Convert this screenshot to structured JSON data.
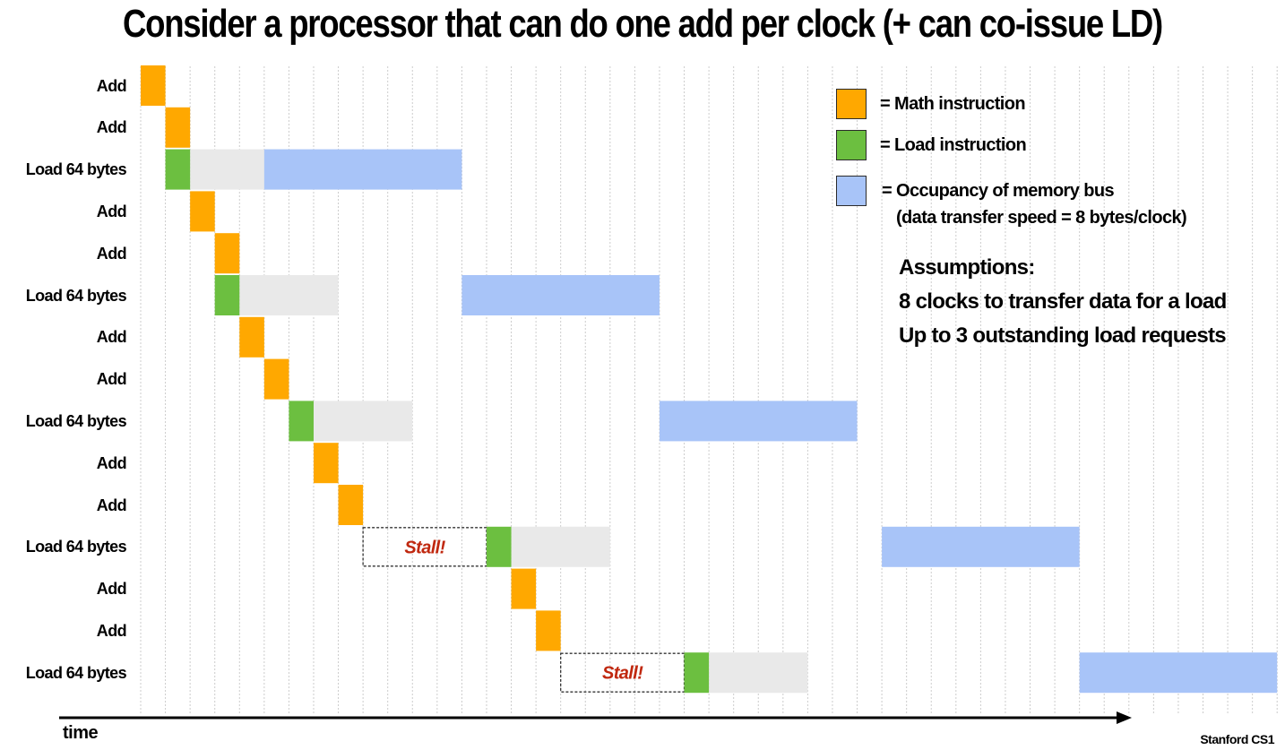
{
  "title": "Consider a processor that can do one add per clock (+ can co-issue LD)",
  "colors": {
    "math": "#ffa800",
    "load": "#6cbf40",
    "latency": "#e9e9e9",
    "bus": "#a8c4f8",
    "stall_text": "#c0280f",
    "grid": "#cccccc"
  },
  "rows": [
    {
      "label": "Add",
      "type": "math"
    },
    {
      "label": "Add",
      "type": "math"
    },
    {
      "label": "Load 64 bytes",
      "type": "load"
    },
    {
      "label": "Add",
      "type": "math"
    },
    {
      "label": "Add",
      "type": "math"
    },
    {
      "label": "Load 64 bytes",
      "type": "load"
    },
    {
      "label": "Add",
      "type": "math"
    },
    {
      "label": "Add",
      "type": "math"
    },
    {
      "label": "Load 64 bytes",
      "type": "load"
    },
    {
      "label": "Add",
      "type": "math"
    },
    {
      "label": "Add",
      "type": "math"
    },
    {
      "label": "Load 64 bytes",
      "type": "load",
      "stall": true
    },
    {
      "label": "Add",
      "type": "math"
    },
    {
      "label": "Add",
      "type": "math"
    },
    {
      "label": "Load 64 bytes",
      "type": "load",
      "stall": true
    }
  ],
  "legend": {
    "math": "=  Math instruction",
    "load": "=  Load instruction",
    "bus": "= Occupancy of memory bus",
    "bus_sub": "(data transfer speed = 8 bytes/clock)"
  },
  "assumptions": {
    "heading": "Assumptions:",
    "line1": "8 clocks to transfer data for a load",
    "line2": "Up to 3 outstanding load requests"
  },
  "stall_label": "Stall!",
  "time_label": "time",
  "footer": "Stanford CS1"
}
